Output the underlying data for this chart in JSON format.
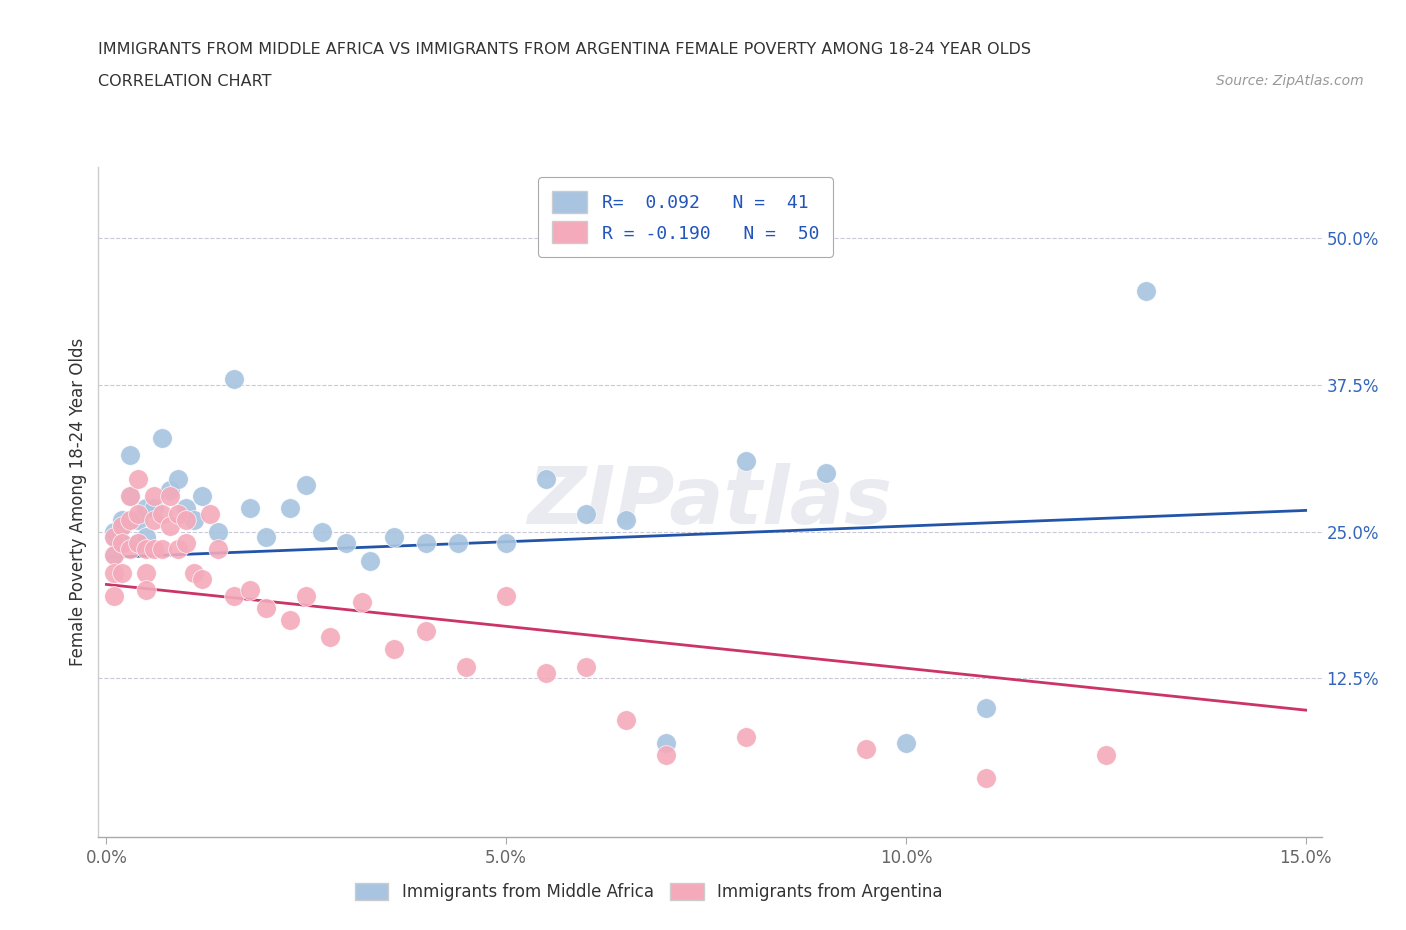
{
  "title_line1": "IMMIGRANTS FROM MIDDLE AFRICA VS IMMIGRANTS FROM ARGENTINA FEMALE POVERTY AMONG 18-24 YEAR OLDS",
  "title_line2": "CORRELATION CHART",
  "source": "Source: ZipAtlas.com",
  "ylabel": "Female Poverty Among 18-24 Year Olds",
  "xlim": [
    -0.001,
    0.152
  ],
  "ylim": [
    -0.01,
    0.56
  ],
  "yticks": [
    0.125,
    0.25,
    0.375,
    0.5
  ],
  "ytick_labels": [
    "12.5%",
    "25.0%",
    "37.5%",
    "50.0%"
  ],
  "xticks": [
    0.0,
    0.05,
    0.1,
    0.15
  ],
  "xtick_labels": [
    "0.0%",
    "5.0%",
    "10.0%",
    "15.0%"
  ],
  "blue_color": "#A8C4E0",
  "blue_line_color": "#2255AA",
  "pink_color": "#F4AABB",
  "pink_line_color": "#CC3366",
  "blue_label": "Immigrants from Middle Africa",
  "pink_label": "Immigrants from Argentina",
  "blue_R": 0.092,
  "blue_N": 41,
  "pink_R": -0.19,
  "pink_N": 50,
  "blue_trend": [
    0.228,
    0.268
  ],
  "pink_trend": [
    0.205,
    0.098
  ],
  "blue_x": [
    0.001,
    0.001,
    0.001,
    0.002,
    0.002,
    0.002,
    0.003,
    0.003,
    0.004,
    0.004,
    0.005,
    0.005,
    0.006,
    0.007,
    0.008,
    0.009,
    0.01,
    0.011,
    0.012,
    0.014,
    0.016,
    0.018,
    0.02,
    0.023,
    0.025,
    0.027,
    0.03,
    0.033,
    0.036,
    0.04,
    0.044,
    0.05,
    0.055,
    0.06,
    0.065,
    0.07,
    0.08,
    0.09,
    0.1,
    0.11,
    0.13
  ],
  "blue_y": [
    0.245,
    0.25,
    0.23,
    0.255,
    0.24,
    0.26,
    0.315,
    0.28,
    0.26,
    0.24,
    0.27,
    0.245,
    0.27,
    0.33,
    0.285,
    0.295,
    0.27,
    0.26,
    0.28,
    0.25,
    0.38,
    0.27,
    0.245,
    0.27,
    0.29,
    0.25,
    0.24,
    0.225,
    0.245,
    0.24,
    0.24,
    0.24,
    0.295,
    0.265,
    0.26,
    0.07,
    0.31,
    0.3,
    0.07,
    0.1,
    0.455
  ],
  "pink_x": [
    0.001,
    0.001,
    0.001,
    0.001,
    0.002,
    0.002,
    0.002,
    0.003,
    0.003,
    0.003,
    0.004,
    0.004,
    0.004,
    0.005,
    0.005,
    0.005,
    0.006,
    0.006,
    0.006,
    0.007,
    0.007,
    0.008,
    0.008,
    0.009,
    0.009,
    0.01,
    0.01,
    0.011,
    0.012,
    0.013,
    0.014,
    0.016,
    0.018,
    0.02,
    0.023,
    0.025,
    0.028,
    0.032,
    0.036,
    0.04,
    0.045,
    0.05,
    0.055,
    0.06,
    0.065,
    0.07,
    0.08,
    0.095,
    0.11,
    0.125
  ],
  "pink_y": [
    0.245,
    0.23,
    0.215,
    0.195,
    0.255,
    0.24,
    0.215,
    0.28,
    0.26,
    0.235,
    0.295,
    0.265,
    0.24,
    0.235,
    0.215,
    0.2,
    0.28,
    0.26,
    0.235,
    0.265,
    0.235,
    0.28,
    0.255,
    0.265,
    0.235,
    0.26,
    0.24,
    0.215,
    0.21,
    0.265,
    0.235,
    0.195,
    0.2,
    0.185,
    0.175,
    0.195,
    0.16,
    0.19,
    0.15,
    0.165,
    0.135,
    0.195,
    0.13,
    0.135,
    0.09,
    0.06,
    0.075,
    0.065,
    0.04,
    0.06
  ]
}
